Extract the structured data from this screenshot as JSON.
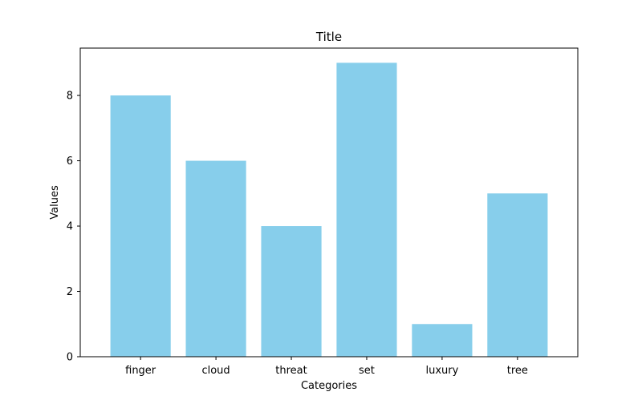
{
  "chart_data": {
    "type": "bar",
    "title": "Title",
    "xlabel": "Categories",
    "ylabel": "Values",
    "categories": [
      "finger",
      "cloud",
      "threat",
      "set",
      "luxury",
      "tree"
    ],
    "values": [
      8,
      6,
      4,
      9,
      1,
      5
    ],
    "ylim": [
      0,
      9.45
    ],
    "yticks": [
      0,
      2,
      4,
      6,
      8
    ],
    "bar_color": "#87CEEB",
    "grid": false,
    "legend": "none"
  }
}
